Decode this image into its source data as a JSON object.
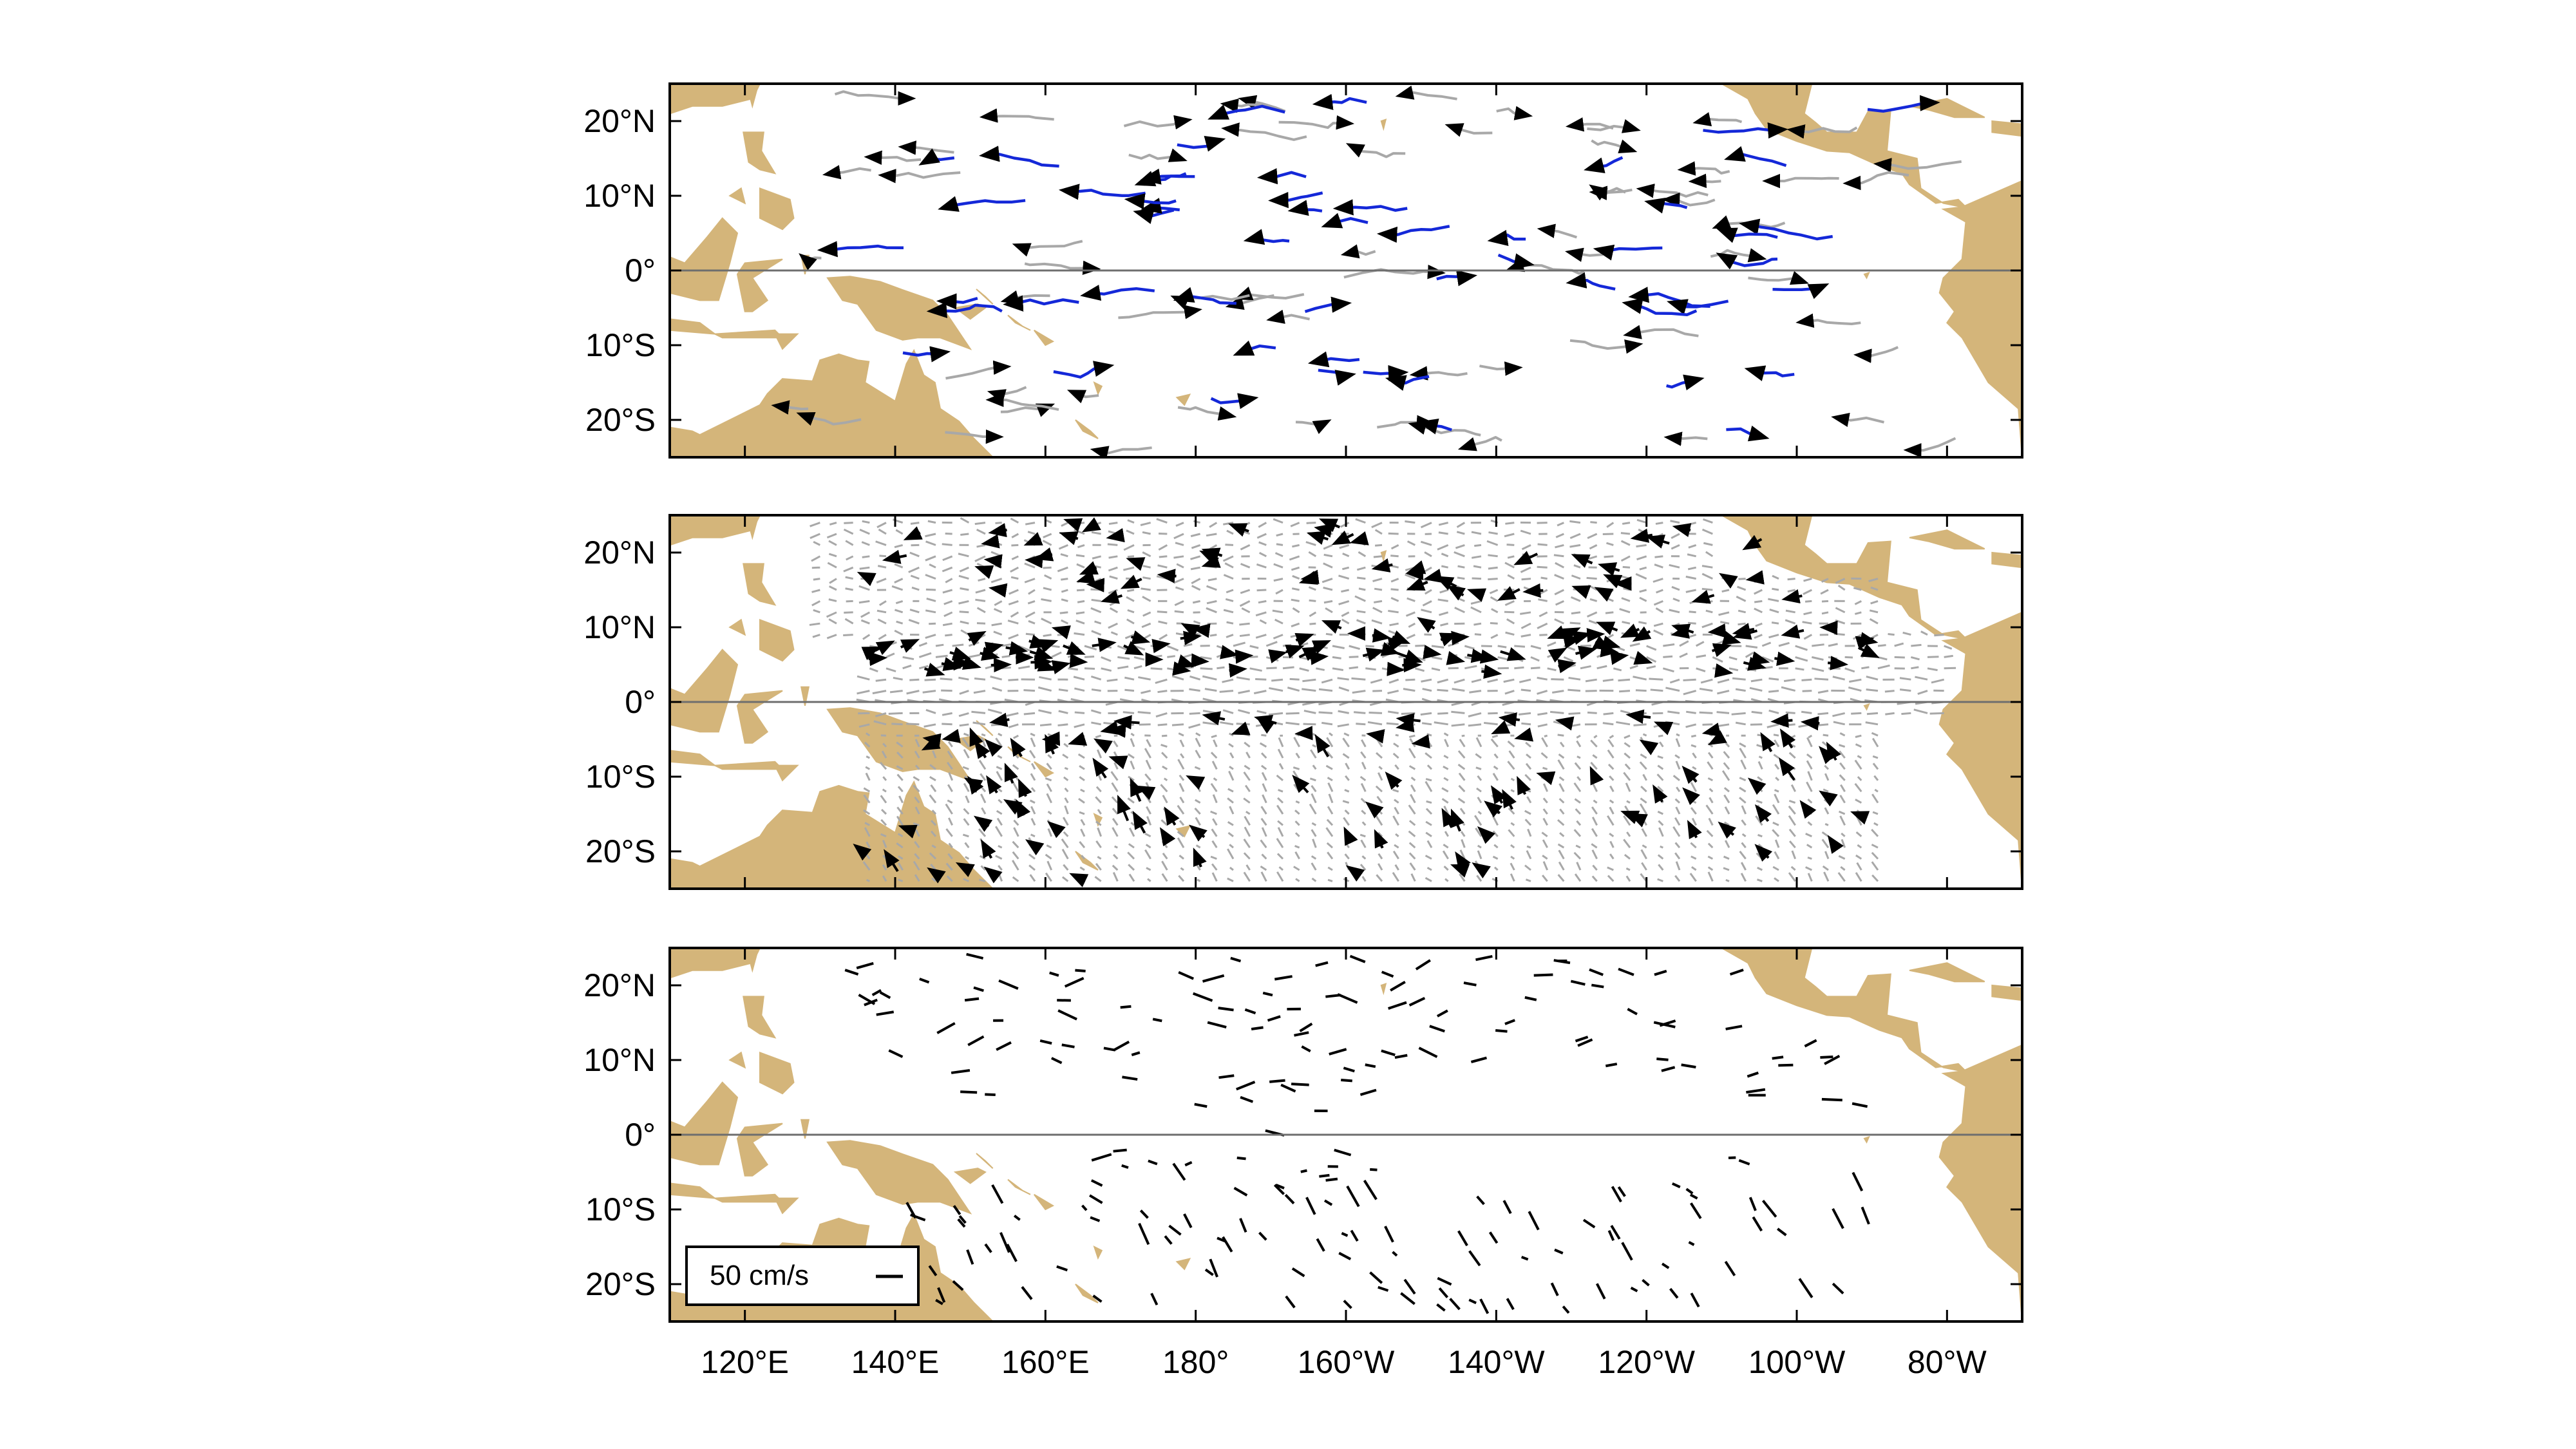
{
  "colors": {
    "land": "#d4b57a",
    "trajectory_highlight": "#1428d8",
    "trajectory_background": "#a8a8a8",
    "vector_primary": "#000000",
    "vector_background": "#a8a8a8",
    "equator_line": "#6e6e6e",
    "frame": "#000000"
  },
  "map": {
    "projection": "equirectangular",
    "lon_range_deg_east": [
      110,
      290
    ],
    "lat_range": [
      -25,
      25
    ],
    "y_tick_labels": [
      "20°N",
      "10°N",
      "0°",
      "10°S",
      "20°S"
    ],
    "x_tick_labels": [
      "120°E",
      "140°E",
      "160°E",
      "180°",
      "160°W",
      "140°W",
      "120°W",
      "100°W",
      "80°W"
    ],
    "x_ticks_deg_east": [
      120,
      140,
      160,
      180,
      200,
      220,
      240,
      260,
      280
    ],
    "y_ticks": [
      20,
      10,
      0,
      -10,
      -20
    ]
  },
  "panels": [
    {
      "id": "panel-top",
      "content": "drifter trajectories with arrowheads (blue highlighted, grey background)"
    },
    {
      "id": "panel-middle",
      "content": "dense velocity vector field (grey) with black highlighted vectors"
    },
    {
      "id": "panel-bottom",
      "content": "sparse black velocity vectors"
    }
  ],
  "legend": {
    "label": "50 cm/s",
    "icon": "scale-bar-icon",
    "panel": "panel-bottom",
    "placement": "bottom-left"
  }
}
